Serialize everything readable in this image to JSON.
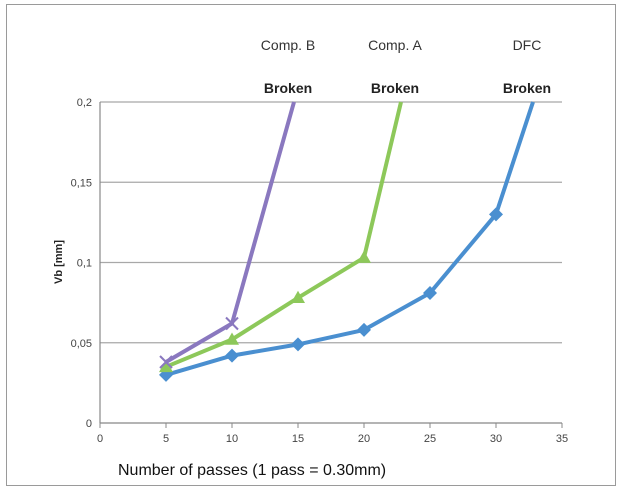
{
  "chart_data": {
    "type": "line",
    "xlabel": "Number of passes (1 pass = 0.30mm)",
    "ylabel": "Vb [mm]",
    "xlim": [
      0,
      35
    ],
    "ylim": [
      0,
      0.2
    ],
    "xticks": [
      "0",
      "5",
      "10",
      "15",
      "20",
      "25",
      "30",
      "35"
    ],
    "yticks": [
      "0",
      "0,05",
      "0,1",
      "0,15",
      "0,2"
    ],
    "grid": "horizontal",
    "series": [
      {
        "name": "DFC",
        "annotation": "Broken",
        "color": "#4a8fd0",
        "marker": "diamond",
        "points": [
          [
            5,
            0.03
          ],
          [
            10,
            0.042
          ],
          [
            15,
            0.049
          ],
          [
            20,
            0.058
          ],
          [
            25,
            0.081
          ],
          [
            30,
            0.13
          ],
          [
            32.8,
            0.2
          ]
        ]
      },
      {
        "name": "Comp. A",
        "annotation": "Broken",
        "color": "#8dc85a",
        "marker": "triangle",
        "points": [
          [
            5,
            0.035
          ],
          [
            10,
            0.052
          ],
          [
            15,
            0.078
          ],
          [
            20,
            0.103
          ],
          [
            22.8,
            0.2
          ]
        ]
      },
      {
        "name": "Comp. B",
        "annotation": "Broken",
        "color": "#8a78bf",
        "marker": "x",
        "points": [
          [
            5,
            0.038
          ],
          [
            10,
            0.062
          ],
          [
            14.7,
            0.2
          ]
        ]
      }
    ]
  }
}
